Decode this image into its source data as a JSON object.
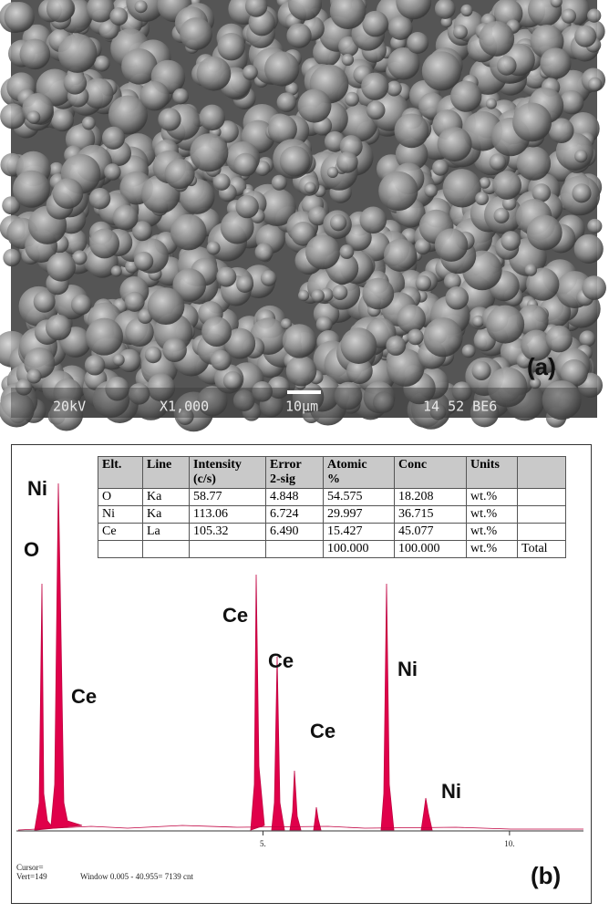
{
  "panel_a": {
    "label": "(a)",
    "info_bar": [
      "20kV",
      "X1,000",
      "10μm",
      "14 52 BE6"
    ]
  },
  "panel_b": {
    "label": "(b)",
    "table": {
      "header": [
        [
          "Elt."
        ],
        [
          "Line"
        ],
        [
          "Intensity",
          "(c/s)"
        ],
        [
          "Error",
          "2-sig"
        ],
        [
          "Atomic",
          "%"
        ],
        [
          "Conc"
        ],
        [
          "Units"
        ],
        [
          null
        ]
      ],
      "rows": [
        [
          "O",
          "Ka",
          "58.77",
          "4.848",
          "54.575",
          "18.208",
          "wt.%",
          null
        ],
        [
          "Ni",
          "Ka",
          "113.06",
          "6.724",
          "29.997",
          "36.715",
          "wt.%",
          null
        ],
        [
          "Ce",
          "La",
          "105.32",
          "6.490",
          "15.427",
          "45.077",
          "wt.%",
          null
        ],
        [
          null,
          null,
          null,
          null,
          "100.000",
          "100.000",
          "wt.%",
          "Total"
        ]
      ]
    },
    "peak_labels": [
      "Ni",
      "O",
      "Ce",
      "Ce",
      "Ce",
      "Ce",
      "Ni",
      "Ni"
    ],
    "xlim": [
      0,
      11.5
    ],
    "xticks": [
      {
        "value": 5,
        "label": "5."
      },
      {
        "value": 10,
        "label": "10."
      }
    ],
    "cursor": "Cursor=",
    "vert": "Vert=149",
    "window": "Window 0.005 - 40.955=  7139 cnt"
  }
}
